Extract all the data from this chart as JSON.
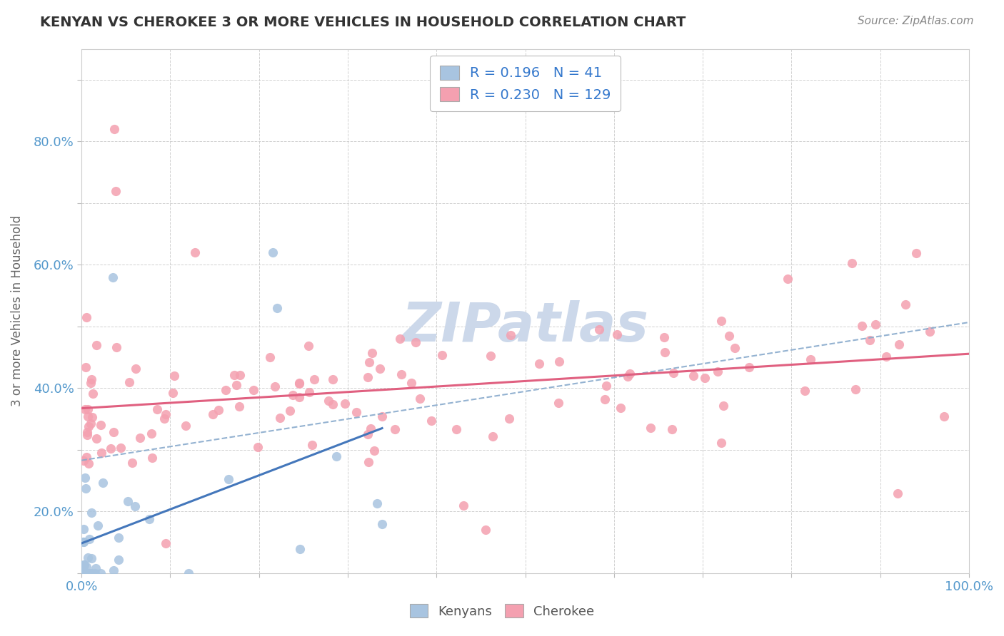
{
  "title": "KENYAN VS CHEROKEE 3 OR MORE VEHICLES IN HOUSEHOLD CORRELATION CHART",
  "source": "Source: ZipAtlas.com",
  "ylabel": "3 or more Vehicles in Household",
  "kenyan_R": 0.196,
  "kenyan_N": 41,
  "cherokee_R": 0.23,
  "cherokee_N": 129,
  "kenyan_color": "#a8c4e0",
  "cherokee_color": "#f4a0b0",
  "kenyan_line_color": "#4477bb",
  "cherokee_line_color": "#e06080",
  "dashed_line_color": "#88aacc",
  "background_color": "#ffffff",
  "grid_color": "#cccccc",
  "watermark_color": "#ccd8ea",
  "title_color": "#333333",
  "source_color": "#888888",
  "tick_color": "#5599cc",
  "label_color": "#666666"
}
